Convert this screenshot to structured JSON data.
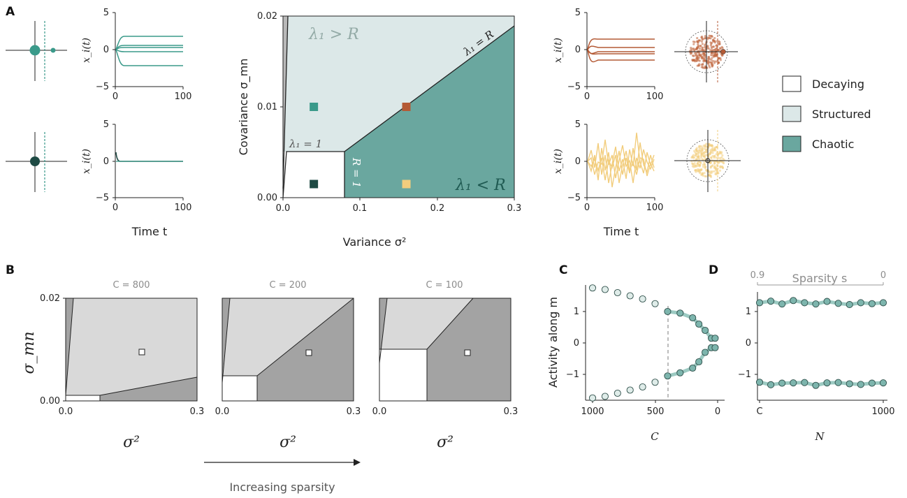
{
  "panels": {
    "a": "A",
    "b": "B",
    "c": "C",
    "d": "D"
  },
  "legend": {
    "decaying": "Decaying",
    "structured": "Structured",
    "chaotic": "Chaotic"
  },
  "colors": {
    "decaying": "#ffffff",
    "structured": "#dce8e8",
    "chaotic": "#6aa79f",
    "teal": "#3a9a8a",
    "dark": "#1e4a44",
    "orange": "#b45a35",
    "yellow": "#f2cd7d",
    "grey_light": "#d9d9d9",
    "grey_dark": "#a3a3a3"
  },
  "labels": {
    "time_t": "Time t",
    "xi_t": "x_i(t)",
    "variance": "Variance σ²",
    "covariance": "Covariance σ_mn",
    "lambda_gt_R": "λ₁ > R",
    "lambda_lt_R": "λ₁ < R",
    "lambda_eq_R": "λ₁ = R",
    "lambda_eq_1": "λ₁ = 1",
    "R_eq_1": "R = 1",
    "sigma2": "σ²",
    "sigma_mn": "σ_mn",
    "increasing_sparsity": "Increasing sparsity",
    "activity_along_m": "Activity along m",
    "C": "C",
    "N": "N",
    "sparsity_s": "Sparsity s"
  },
  "ticks": {
    "small_y": [
      "5",
      "0",
      "−5"
    ],
    "small_x": [
      "0",
      "100"
    ],
    "main_y": [
      "0.02",
      "0.01",
      "0.00"
    ],
    "main_x": [
      "0.0",
      "0.1",
      "0.2",
      "0.3"
    ],
    "b_y": [
      "0.02",
      "0.00"
    ],
    "b_x": [
      "0.0",
      "0.3"
    ],
    "c_x": [
      "1000",
      "500",
      "0"
    ],
    "cd_y": [
      "1",
      "0",
      "−1"
    ],
    "d_x": [
      "C",
      "1000"
    ],
    "d_top": [
      "0.9",
      "0"
    ]
  },
  "b_titles": [
    "C = 800",
    "C = 200",
    "C = 100"
  ],
  "chart_data": [
    {
      "type": "area",
      "title": "",
      "xlabel": "Variance σ²",
      "ylabel": "Covariance σ_mn",
      "xlim": [
        0.0,
        0.3
      ],
      "ylim": [
        0.0,
        0.02
      ],
      "regions": [
        "Decaying",
        "Structured",
        "Chaotic"
      ],
      "markers": [
        {
          "x": 0.04,
          "y": 0.01,
          "color": "#3a9a8a"
        },
        {
          "x": 0.16,
          "y": 0.01,
          "color": "#b45a35"
        },
        {
          "x": 0.04,
          "y": 0.0015,
          "color": "#1e4a44"
        },
        {
          "x": 0.16,
          "y": 0.0015,
          "color": "#f2cd7d"
        }
      ]
    },
    {
      "type": "area",
      "title": "C = 800",
      "xlabel": "σ²",
      "ylabel": "σ_mn",
      "xlim": [
        0.0,
        0.3
      ],
      "ylim": [
        0.0,
        0.02
      ],
      "marker": {
        "x": 0.17,
        "y": 0.0095
      }
    },
    {
      "type": "area",
      "title": "C = 200",
      "xlabel": "σ²",
      "ylabel": "",
      "xlim": [
        0.0,
        0.3
      ],
      "ylim": [
        0.0,
        0.02
      ],
      "marker": {
        "x": 0.17,
        "y": 0.0095
      }
    },
    {
      "type": "area",
      "title": "C = 100",
      "xlabel": "σ²",
      "ylabel": "",
      "xlim": [
        0.0,
        0.3
      ],
      "ylim": [
        0.0,
        0.02
      ],
      "marker": {
        "x": 0.17,
        "y": 0.0095
      }
    },
    {
      "type": "scatter",
      "title": "",
      "xlabel": "C",
      "ylabel": "Activity along m",
      "xlim": [
        1000,
        0
      ],
      "ylim": [
        -1.8,
        1.8
      ],
      "threshold_x": 400,
      "series": [
        {
          "values_x": [
            1000,
            900,
            800,
            700,
            600,
            500,
            400,
            300,
            200,
            150,
            100,
            50,
            20
          ],
          "values_y": [
            1.75,
            1.7,
            1.6,
            1.5,
            1.4,
            1.25,
            1.0,
            0.95,
            0.8,
            0.6,
            0.4,
            0.15,
            0.15
          ]
        },
        {
          "values_x": [
            1000,
            900,
            800,
            700,
            600,
            500,
            400,
            300,
            200,
            150,
            100,
            50,
            20
          ],
          "values_y": [
            -1.75,
            -1.7,
            -1.6,
            -1.5,
            -1.4,
            -1.25,
            -1.05,
            -0.95,
            -0.8,
            -0.6,
            -0.3,
            -0.15,
            -0.15
          ]
        }
      ]
    },
    {
      "type": "scatter",
      "title": "",
      "xlabel": "N",
      "ylabel": "",
      "ylim": [
        -1.8,
        1.8
      ],
      "x_ticks": [
        "C",
        "1000"
      ],
      "top_axis": {
        "label": "Sparsity s",
        "ticks": [
          "0.9",
          "0"
        ]
      },
      "series": [
        {
          "values_y": [
            1.28,
            1.33,
            1.24,
            1.35,
            1.28,
            1.24,
            1.32,
            1.26,
            1.22,
            1.28,
            1.25,
            1.28
          ]
        },
        {
          "values_y": [
            -1.25,
            -1.33,
            -1.28,
            -1.27,
            -1.26,
            -1.35,
            -1.27,
            -1.26,
            -1.3,
            -1.32,
            -1.28,
            -1.27
          ]
        }
      ]
    }
  ]
}
